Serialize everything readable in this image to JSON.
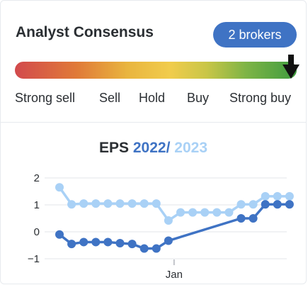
{
  "header": {
    "title": "Analyst Consensus",
    "brokers_badge": "2 brokers"
  },
  "consensus": {
    "labels": [
      "Strong sell",
      "Sell",
      "Hold",
      "Buy",
      "Strong buy"
    ],
    "indicator_position": 1.0,
    "indicator_icon": "down-arrow-icon"
  },
  "eps": {
    "title_prefix": "EPS",
    "year_primary": "2022",
    "separator": "/",
    "year_secondary": "2023",
    "colors": {
      "primary": "#3f73c4",
      "secondary": "#a9d1f6"
    }
  },
  "chart_data": {
    "type": "line",
    "title": "EPS 2022 / 2023",
    "y_ticks": [
      "2",
      "1",
      "0",
      "−1"
    ],
    "ylim": [
      -1,
      2
    ],
    "x_ticks": [
      {
        "label": "Jan",
        "index": 9
      }
    ],
    "grid": true,
    "series": [
      {
        "name": "2022",
        "color": "#3f73c4",
        "points": [
          [
            0,
            -0.1
          ],
          [
            1,
            -0.45
          ],
          [
            2,
            -0.38
          ],
          [
            3,
            -0.38
          ],
          [
            4,
            -0.38
          ],
          [
            5,
            -0.42
          ],
          [
            6,
            -0.45
          ],
          [
            7,
            -0.62
          ],
          [
            8,
            -0.62
          ],
          [
            9,
            -0.33
          ],
          [
            15,
            0.5
          ],
          [
            16,
            0.5
          ],
          [
            17,
            1.02
          ],
          [
            18,
            1.02
          ],
          [
            19,
            1.02
          ]
        ]
      },
      {
        "name": "2023",
        "color": "#a9d1f6",
        "points": [
          [
            0,
            1.65
          ],
          [
            1,
            1.02
          ],
          [
            2,
            1.05
          ],
          [
            3,
            1.05
          ],
          [
            4,
            1.05
          ],
          [
            5,
            1.05
          ],
          [
            6,
            1.05
          ],
          [
            7,
            1.05
          ],
          [
            8,
            1.05
          ],
          [
            9,
            0.42
          ],
          [
            10,
            0.72
          ],
          [
            11,
            0.72
          ],
          [
            12,
            0.72
          ],
          [
            13,
            0.72
          ],
          [
            14,
            0.72
          ],
          [
            15,
            1.02
          ],
          [
            16,
            1.02
          ],
          [
            17,
            1.32
          ],
          [
            18,
            1.32
          ],
          [
            19,
            1.32
          ]
        ]
      }
    ]
  }
}
